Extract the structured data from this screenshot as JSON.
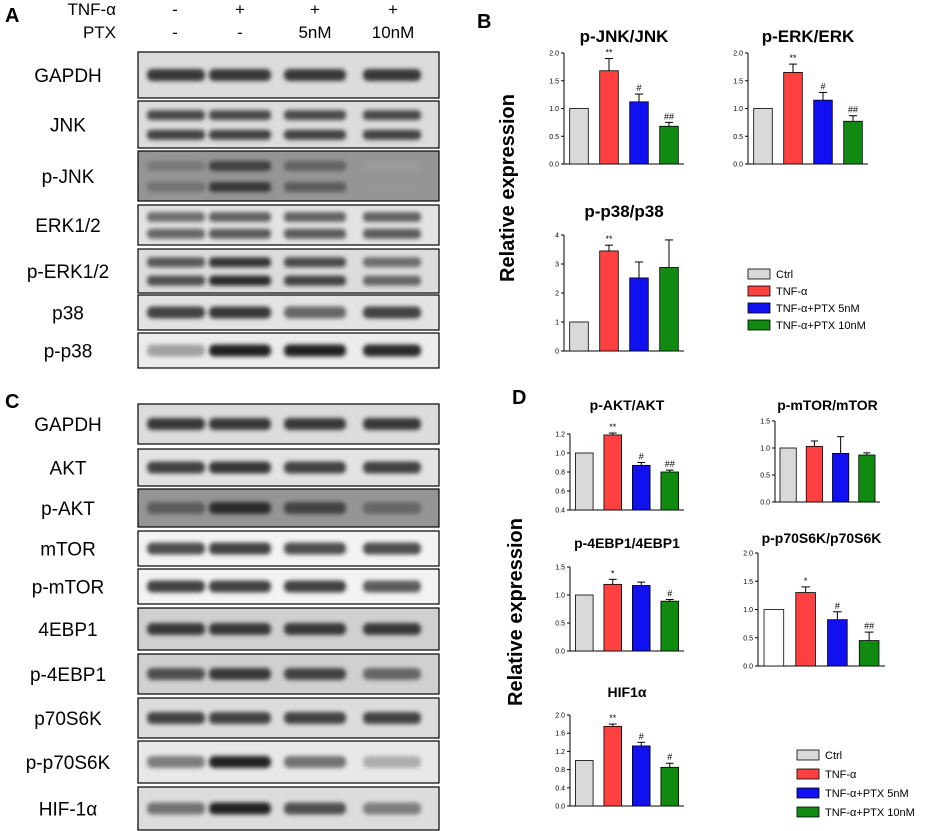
{
  "panels": {
    "A": {
      "letter": "A",
      "conditions": [
        {
          "name": "TNF-α",
          "values": [
            "-",
            "+",
            "+",
            "+"
          ]
        },
        {
          "name": "PTX",
          "values": [
            "-",
            "-",
            "5nM",
            "10nM"
          ]
        }
      ],
      "blots": [
        {
          "label": "GAPDH",
          "bands": 1,
          "intensity": [
            0.85,
            0.85,
            0.85,
            0.85
          ],
          "bg": 0.15
        },
        {
          "label": "JNK",
          "bands": 2,
          "intensity": [
            0.8,
            0.8,
            0.8,
            0.8
          ],
          "bg": 0.15
        },
        {
          "label": "p-JNK",
          "bands": 2,
          "intensity": [
            0.6,
            0.85,
            0.7,
            0.45
          ],
          "bg": 0.45
        },
        {
          "label": "ERK1/2",
          "bands": 2,
          "intensity": [
            0.65,
            0.7,
            0.7,
            0.7
          ],
          "bg": 0.12
        },
        {
          "label": "p-ERK1/2",
          "bands": 2,
          "intensity": [
            0.75,
            0.9,
            0.8,
            0.65
          ],
          "bg": 0.15
        },
        {
          "label": "p38",
          "bands": 1,
          "intensity": [
            0.8,
            0.85,
            0.65,
            0.8
          ],
          "bg": 0.12
        },
        {
          "label": "p-p38",
          "bands": 1,
          "intensity": [
            0.4,
            0.95,
            0.95,
            0.9
          ],
          "bg": 0.08
        }
      ]
    },
    "C": {
      "letter": "C",
      "blots": [
        {
          "label": "GAPDH",
          "bands": 1,
          "intensity": [
            0.85,
            0.85,
            0.85,
            0.85
          ],
          "bg": 0.15
        },
        {
          "label": "AKT",
          "bands": 1,
          "intensity": [
            0.8,
            0.85,
            0.8,
            0.8
          ],
          "bg": 0.12
        },
        {
          "label": "p-AKT",
          "bands": 1,
          "intensity": [
            0.7,
            0.9,
            0.8,
            0.65
          ],
          "bg": 0.45
        },
        {
          "label": "mTOR",
          "bands": 1,
          "intensity": [
            0.75,
            0.8,
            0.75,
            0.75
          ],
          "bg": 0.05
        },
        {
          "label": "p-mTOR",
          "bands": 1,
          "intensity": [
            0.8,
            0.8,
            0.8,
            0.7
          ],
          "bg": 0.05
        },
        {
          "label": "4EBP1",
          "bands": 1,
          "intensity": [
            0.85,
            0.85,
            0.85,
            0.85
          ],
          "bg": 0.2
        },
        {
          "label": "p-4EBP1",
          "bands": 1,
          "intensity": [
            0.75,
            0.85,
            0.8,
            0.65
          ],
          "bg": 0.2
        },
        {
          "label": "p70S6K",
          "bands": 1,
          "intensity": [
            0.8,
            0.8,
            0.8,
            0.8
          ],
          "bg": 0.15
        },
        {
          "label": "p-p70S6K",
          "bands": 1,
          "intensity": [
            0.55,
            0.95,
            0.6,
            0.35
          ],
          "bg": 0.1
        },
        {
          "label": "HIF-1α",
          "bands": 1,
          "intensity": [
            0.6,
            0.95,
            0.75,
            0.55
          ],
          "bg": 0.15
        }
      ]
    },
    "B": {
      "letter": "B",
      "ylabel": "Relative expression"
    },
    "D": {
      "letter": "D",
      "ylabel": "Relative   expression"
    }
  },
  "colors": {
    "ctrl": "#d9d9d9",
    "tnf": "#ff4040",
    "ptx5": "#1010f0",
    "ptx10": "#108a10",
    "ctrl_alt": "#ffffff"
  },
  "legendB": [
    "Ctrl",
    "TNF-α",
    "TNF-α+PTX 5nM",
    "TNF-α+PTX 10nM"
  ],
  "legendD": [
    "Ctrl",
    "TNF-α",
    "TNF-α+PTX 5nM",
    "TNF-α+PTX 10nM"
  ],
  "chart_data": [
    {
      "type": "bar",
      "title": "p-JNK/JNK",
      "categories": [
        "Ctrl",
        "TNF-α",
        "TNF-α+PTX 5nM",
        "TNF-α+PTX 10nM"
      ],
      "values": [
        1.0,
        1.68,
        1.12,
        0.68
      ],
      "errors": [
        0,
        0.22,
        0.14,
        0.07
      ],
      "ylim": [
        0,
        2.0
      ],
      "yticks": [
        "0.0",
        "0.5",
        "1.0",
        "1.5",
        "2.0"
      ],
      "sig": [
        "",
        "**",
        "#",
        "##"
      ]
    },
    {
      "type": "bar",
      "title": "p-ERK/ERK",
      "categories": [
        "Ctrl",
        "TNF-α",
        "TNF-α+PTX 5nM",
        "TNF-α+PTX 10nM"
      ],
      "values": [
        1.0,
        1.65,
        1.15,
        0.77
      ],
      "errors": [
        0,
        0.15,
        0.14,
        0.1
      ],
      "ylim": [
        0,
        2.0
      ],
      "yticks": [
        "0.0",
        "0.5",
        "1.0",
        "1.5",
        "2.0"
      ],
      "sig": [
        "",
        "**",
        "#",
        "##"
      ]
    },
    {
      "type": "bar",
      "title": "p-p38/p38",
      "categories": [
        "Ctrl",
        "TNF-α",
        "TNF-α+PTX 5nM",
        "TNF-α+PTX 10nM"
      ],
      "values": [
        1.0,
        3.45,
        2.52,
        2.88
      ],
      "errors": [
        0,
        0.2,
        0.55,
        0.95
      ],
      "ylim": [
        0,
        4
      ],
      "yticks": [
        "0",
        "1",
        "2",
        "3",
        "4"
      ],
      "sig": [
        "",
        "**",
        "",
        ""
      ]
    },
    {
      "type": "bar",
      "title": "p-AKT/AKT",
      "categories": [
        "Ctrl",
        "TNF-α",
        "TNF-α+PTX 5nM",
        "TNF-α+PTX 10nM"
      ],
      "values": [
        1.0,
        1.19,
        0.87,
        0.8
      ],
      "errors": [
        0,
        0.02,
        0.03,
        0.02
      ],
      "ylim": [
        0.4,
        1.2
      ],
      "yticks": [
        "0.4",
        "0.6",
        "0.8",
        "1.0",
        "1.2"
      ],
      "sig": [
        "",
        "**",
        "#",
        "##"
      ]
    },
    {
      "type": "bar",
      "title": "p-mTOR/mTOR",
      "categories": [
        "Ctrl",
        "TNF-α",
        "TNF-α+PTX 5nM",
        "TNF-α+PTX 10nM"
      ],
      "values": [
        1.0,
        1.03,
        0.9,
        0.87
      ],
      "errors": [
        0,
        0.1,
        0.31,
        0.04
      ],
      "ylim": [
        0,
        1.5
      ],
      "yticks": [
        "0.0",
        "0.5",
        "1.0",
        "1.5"
      ],
      "sig": [
        "",
        "",
        "",
        ""
      ]
    },
    {
      "type": "bar",
      "title": "p-4EBP1/4EBP1",
      "categories": [
        "Ctrl",
        "TNF-α",
        "TNF-α+PTX 5nM",
        "TNF-α+PTX 10nM"
      ],
      "values": [
        1.0,
        1.19,
        1.17,
        0.89
      ],
      "errors": [
        0,
        0.09,
        0.06,
        0.03
      ],
      "ylim": [
        0,
        1.5
      ],
      "yticks": [
        "0.0",
        "0.5",
        "1.0",
        "1.5"
      ],
      "sig": [
        "",
        "*",
        "",
        "#"
      ]
    },
    {
      "type": "bar",
      "title": "p-p70S6K/p70S6K",
      "categories": [
        "Ctrl",
        "TNF-α",
        "TNF-α+PTX 5nM",
        "TNF-α+PTX 10nM"
      ],
      "values": [
        1.0,
        1.3,
        0.82,
        0.45
      ],
      "errors": [
        0,
        0.1,
        0.14,
        0.15
      ],
      "ylim": [
        0,
        2.0
      ],
      "yticks": [
        "0.0",
        "0.5",
        "1.0",
        "1.5",
        "2.0"
      ],
      "sig": [
        "",
        "*",
        "#",
        "##"
      ]
    },
    {
      "type": "bar",
      "title": "HIF1α",
      "categories": [
        "Ctrl",
        "TNF-α",
        "TNF-α+PTX 5nM",
        "TNF-α+PTX 10nM"
      ],
      "values": [
        1.0,
        1.75,
        1.32,
        0.85
      ],
      "errors": [
        0,
        0.05,
        0.08,
        0.09
      ],
      "ylim": [
        0,
        2.0
      ],
      "yticks": [
        "0.0",
        "0.4",
        "0.8",
        "1.2",
        "1.6",
        "2.0"
      ],
      "sig": [
        "",
        "**",
        "#",
        "#"
      ]
    }
  ]
}
